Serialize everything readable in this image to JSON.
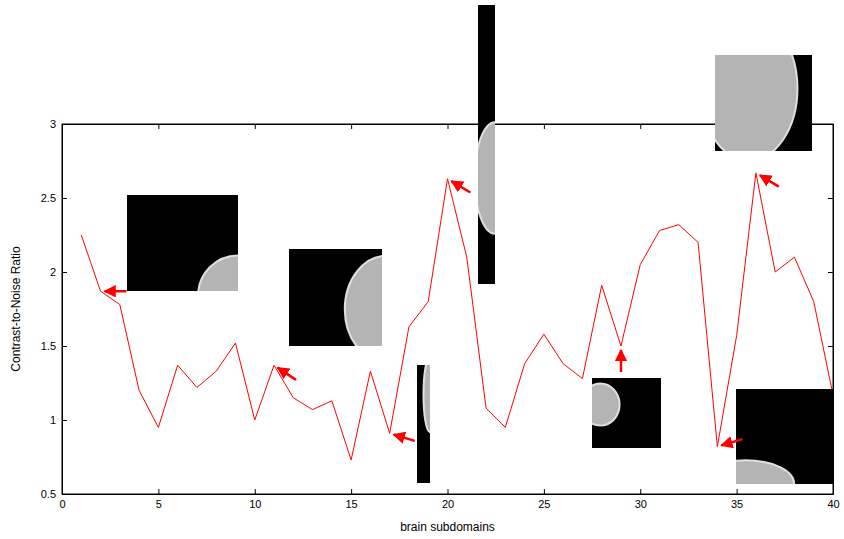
{
  "chart_data": {
    "type": "line",
    "color": "#ff0000",
    "x_label": "brain subdomains",
    "y_label": "Contrast-to-Noise Ratio",
    "x": [
      1,
      2,
      3,
      4,
      5,
      6,
      7,
      8,
      9,
      10,
      11,
      12,
      13,
      14,
      15,
      16,
      17,
      18,
      19,
      20,
      21,
      22,
      23,
      24,
      25,
      26,
      27,
      28,
      29,
      30,
      31,
      32,
      33,
      34,
      35,
      36,
      37,
      38,
      39,
      40
    ],
    "values": [
      2.25,
      1.87,
      1.78,
      1.2,
      0.95,
      1.37,
      1.22,
      1.33,
      1.52,
      1.0,
      1.37,
      1.15,
      1.07,
      1.13,
      0.73,
      1.33,
      0.91,
      1.63,
      1.8,
      2.63,
      2.1,
      1.08,
      0.95,
      1.38,
      1.58,
      1.38,
      1.28,
      1.91,
      1.5,
      2.05,
      2.28,
      2.32,
      2.2,
      0.82,
      1.57,
      2.67,
      2.0,
      2.1,
      1.8,
      1.17
    ],
    "xlim": [
      0,
      40
    ],
    "xticks": [
      0,
      5,
      10,
      15,
      20,
      25,
      30,
      35,
      40
    ],
    "ylim": [
      0.5,
      3
    ],
    "yticks": [
      0.5,
      1,
      1.5,
      2,
      2.5,
      3
    ],
    "grid": false
  }
}
